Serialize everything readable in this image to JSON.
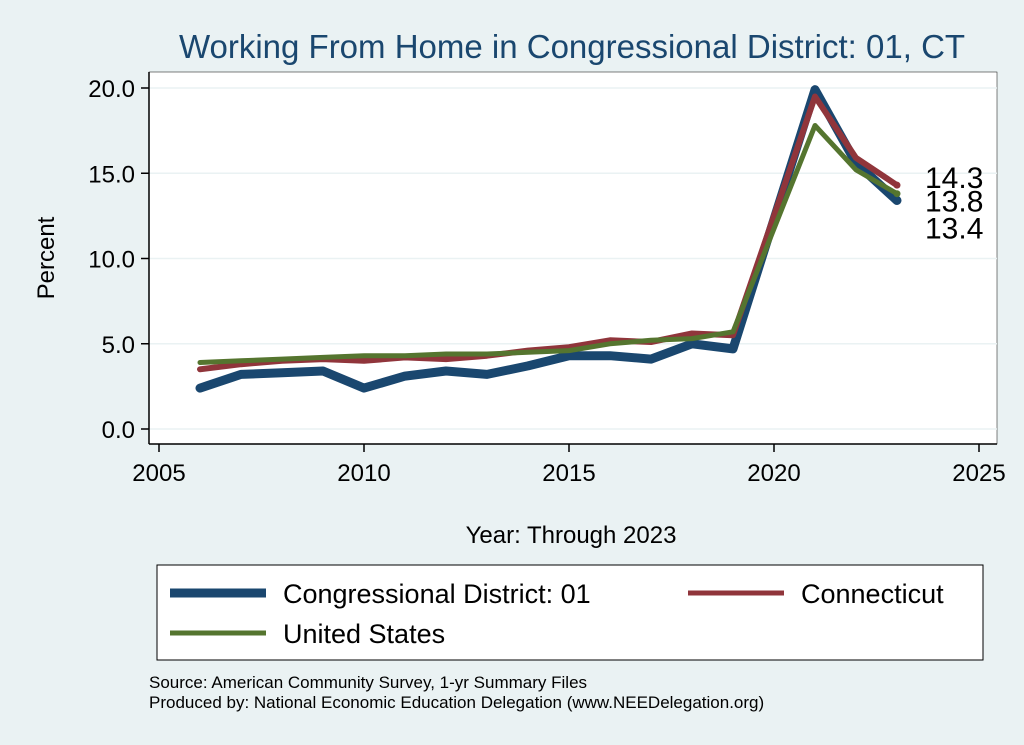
{
  "chart_data": {
    "type": "line",
    "title": "Working From Home in Congressional District: 01, CT",
    "xlabel": "Year: Through 2023",
    "ylabel": "Percent",
    "xlim": [
      2005,
      2025
    ],
    "ylim": [
      0,
      20
    ],
    "x_ticks": [
      2005,
      2010,
      2015,
      2020,
      2025
    ],
    "x_tick_labels": [
      "2005",
      "2010",
      "2015",
      "2020",
      "2025"
    ],
    "y_ticks": [
      0,
      5,
      10,
      15,
      20
    ],
    "y_tick_labels": [
      "0.0",
      "5.0",
      "10.0",
      "15.0",
      "20.0"
    ],
    "grid": "horizontal",
    "legend_position": "bottom",
    "series": [
      {
        "name": "Congressional District: 01",
        "color": "#1a476f",
        "x": [
          2006,
          2007,
          2008,
          2009,
          2010,
          2011,
          2012,
          2013,
          2014,
          2015,
          2016,
          2017,
          2018,
          2019,
          2021,
          2022,
          2023
        ],
        "values": [
          2.4,
          3.2,
          3.3,
          3.4,
          2.4,
          3.1,
          3.4,
          3.2,
          3.7,
          4.3,
          4.3,
          4.1,
          5.0,
          4.7,
          19.9,
          15.6,
          13.4
        ],
        "end_label": "13.4"
      },
      {
        "name": "Connecticut",
        "color": "#90353b",
        "x": [
          2006,
          2007,
          2008,
          2009,
          2010,
          2011,
          2012,
          2013,
          2014,
          2015,
          2016,
          2017,
          2018,
          2019,
          2021,
          2022,
          2023
        ],
        "values": [
          3.5,
          3.8,
          4.0,
          4.1,
          4.0,
          4.2,
          4.1,
          4.3,
          4.6,
          4.8,
          5.2,
          5.1,
          5.6,
          5.5,
          19.5,
          15.9,
          14.3
        ],
        "end_label": "14.3"
      },
      {
        "name": "United States",
        "color": "#55752f",
        "x": [
          2006,
          2007,
          2008,
          2009,
          2010,
          2011,
          2012,
          2013,
          2014,
          2015,
          2016,
          2017,
          2018,
          2019,
          2021,
          2022,
          2023
        ],
        "values": [
          3.9,
          4.0,
          4.1,
          4.2,
          4.3,
          4.3,
          4.4,
          4.4,
          4.5,
          4.6,
          5.0,
          5.2,
          5.3,
          5.7,
          17.8,
          15.2,
          13.8
        ],
        "end_label": "13.8"
      }
    ]
  },
  "legend": {
    "items": [
      {
        "label": "Congressional District: 01",
        "color": "#1a476f"
      },
      {
        "label": "Connecticut",
        "color": "#90353b"
      },
      {
        "label": "United States",
        "color": "#55752f"
      }
    ]
  },
  "notes": {
    "source": "Source: American Community Survey, 1-yr Summary Files",
    "produced_by": "Produced by: National Economic Education Delegation (www.NEEDelegation.org)"
  }
}
